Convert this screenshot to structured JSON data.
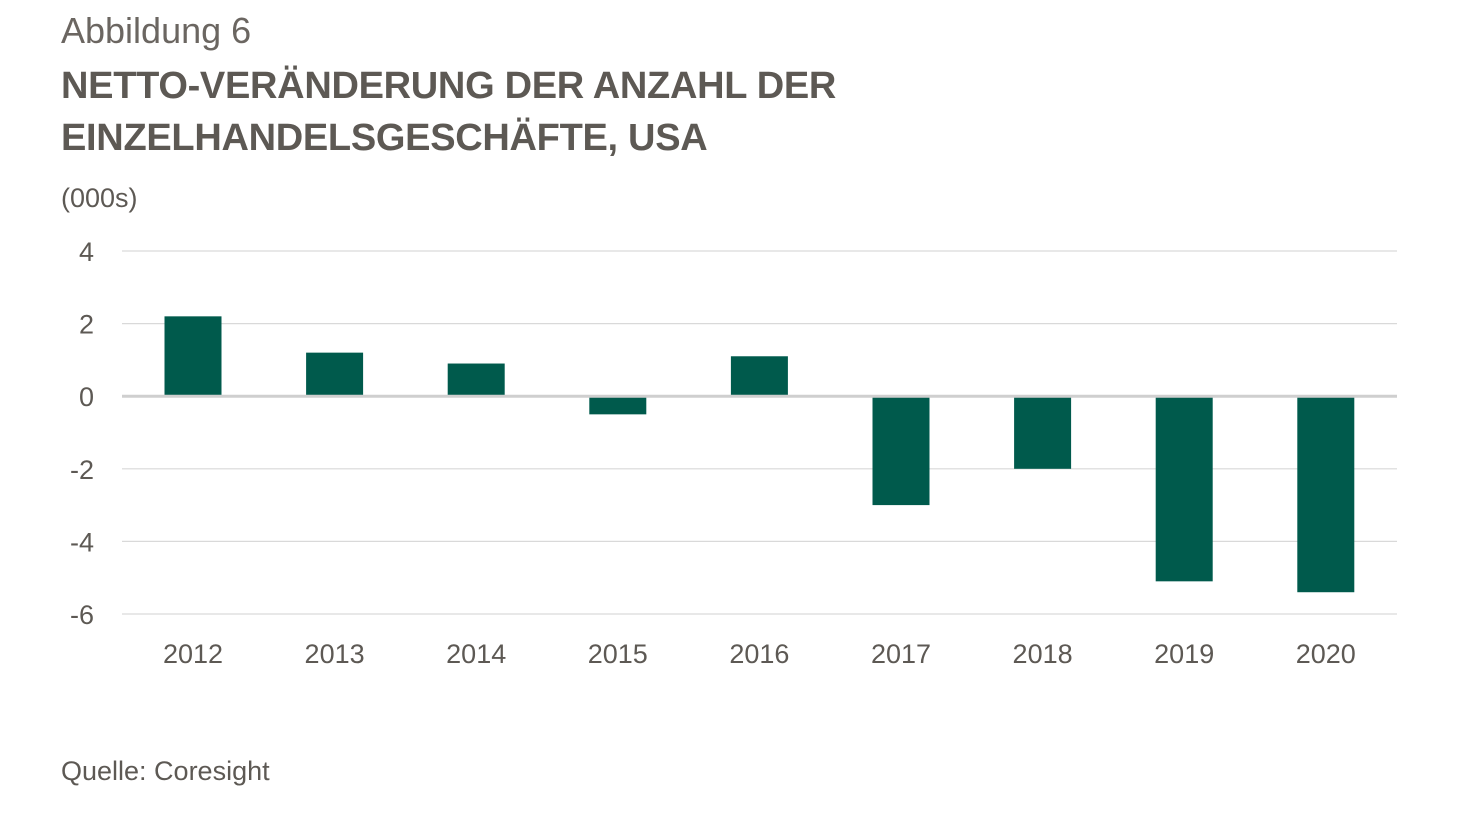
{
  "figure": {
    "label": "Abbildung 6",
    "title": "NETTO-VERÄNDERUNG DER ANZAHL DER EINZELHANDELSGESCHÄFTE, USA",
    "unit": "(000s)",
    "source": "Quelle: Coresight"
  },
  "colors": {
    "bar": "#005a4c",
    "grid": "#d9d9d9",
    "zero_line": "#cfcfcf",
    "text": "#5d5954"
  },
  "chart_data": {
    "type": "bar",
    "title": "NETTO-VERÄNDERUNG DER ANZAHL DER EINZELHANDELSGESCHÄFTE, USA",
    "xlabel": "",
    "ylabel": "(000s)",
    "categories": [
      "2012",
      "2013",
      "2014",
      "2015",
      "2016",
      "2017",
      "2018",
      "2019",
      "2020"
    ],
    "values": [
      2.2,
      1.2,
      0.9,
      -0.5,
      1.1,
      -3.0,
      -2.0,
      -5.1,
      -5.4
    ],
    "ylim": [
      -6,
      4
    ],
    "yticks": [
      4,
      2,
      0,
      -2,
      -4,
      -6
    ],
    "grid": true,
    "legend": "none"
  }
}
